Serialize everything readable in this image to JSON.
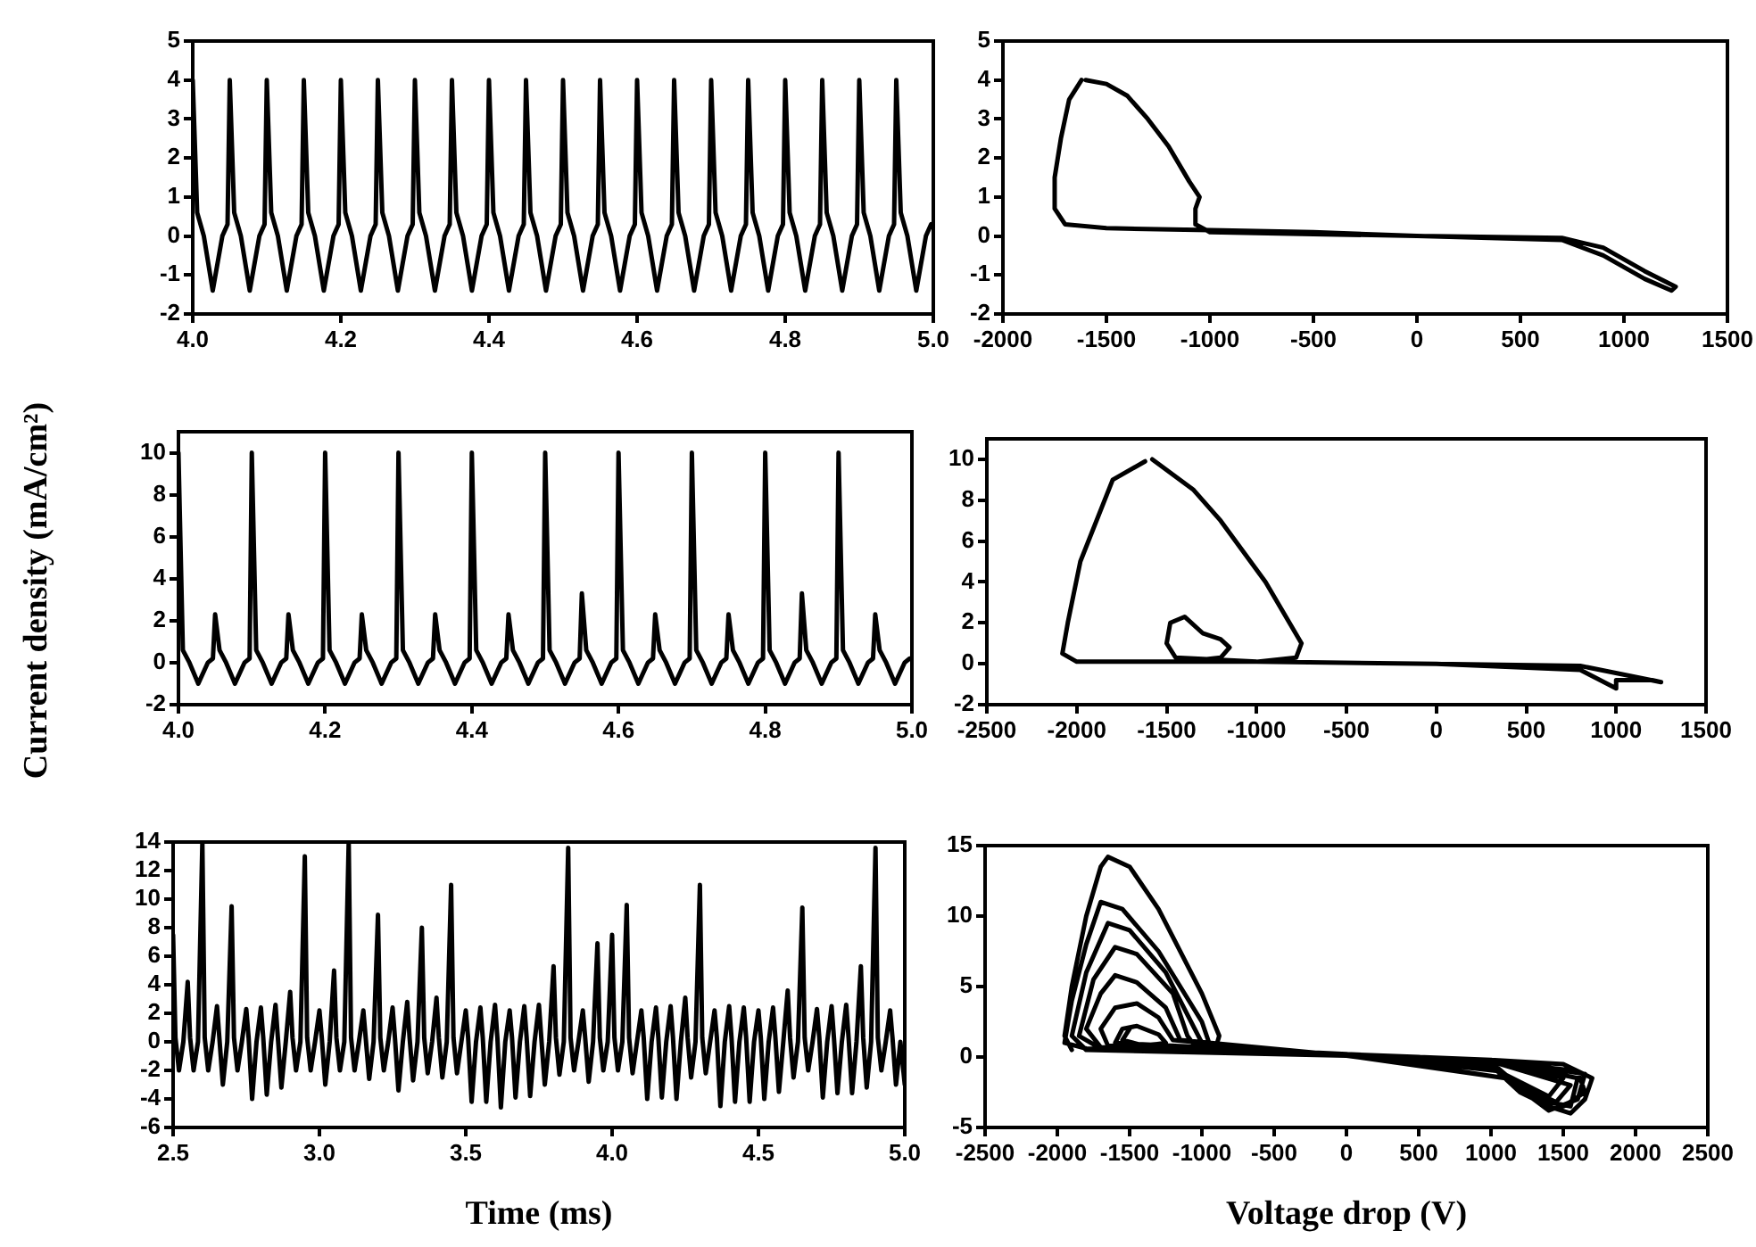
{
  "chart_data": [
    {
      "type": "line",
      "xlim": [
        4,
        5
      ],
      "xticks": [
        {
          "value": 4,
          "label": "4.0"
        },
        4.2,
        4.4,
        4.6,
        4.8,
        {
          "value": 5,
          "label": "5.0"
        }
      ],
      "ylim": [
        -2,
        5
      ],
      "yticks": [
        -2,
        -1,
        0,
        1,
        2,
        3,
        4,
        5
      ],
      "color": "#000000",
      "x": [
        4,
        4.006,
        4.015,
        4.027,
        4.04,
        4.047,
        4.05,
        4.056,
        4.065,
        4.077,
        4.09,
        4.097,
        4.1,
        4.106,
        4.115,
        4.127,
        4.14,
        4.147,
        4.15,
        4.156,
        4.165,
        4.177,
        4.19,
        4.197,
        4.2,
        4.206,
        4.215,
        4.227,
        4.24,
        4.247,
        4.25,
        4.256,
        4.265,
        4.277,
        4.29,
        4.297,
        4.3,
        4.306,
        4.315,
        4.327,
        4.34,
        4.347,
        4.35,
        4.356,
        4.365,
        4.377,
        4.39,
        4.397,
        4.4,
        4.406,
        4.415,
        4.427,
        4.44,
        4.447,
        4.45,
        4.456,
        4.465,
        4.477,
        4.49,
        4.497,
        4.5,
        4.506,
        4.515,
        4.527,
        4.54,
        4.547,
        4.55,
        4.556,
        4.565,
        4.577,
        4.59,
        4.597,
        4.6,
        4.606,
        4.615,
        4.627,
        4.64,
        4.647,
        4.65,
        4.656,
        4.665,
        4.677,
        4.69,
        4.697,
        4.7,
        4.706,
        4.715,
        4.727,
        4.74,
        4.747,
        4.75,
        4.756,
        4.765,
        4.777,
        4.79,
        4.797,
        4.8,
        4.806,
        4.815,
        4.827,
        4.84,
        4.847,
        4.85,
        4.856,
        4.865,
        4.877,
        4.89,
        4.897,
        4.9,
        4.906,
        4.915,
        4.927,
        4.94,
        4.947,
        4.95,
        4.956,
        4.965,
        4.977,
        4.99,
        4.997,
        5
      ],
      "values": [
        4,
        0.6,
        0,
        -1.4,
        0,
        0.3,
        4,
        0.6,
        0,
        -1.4,
        0,
        0.3,
        4,
        0.6,
        0,
        -1.4,
        0,
        0.3,
        4,
        0.6,
        0,
        -1.4,
        0,
        0.3,
        4,
        0.6,
        0,
        -1.4,
        0,
        0.3,
        4,
        0.6,
        0,
        -1.4,
        0,
        0.3,
        4,
        0.6,
        0,
        -1.4,
        0,
        0.3,
        4,
        0.6,
        0,
        -1.4,
        0,
        0.3,
        4,
        0.6,
        0,
        -1.4,
        0,
        0.3,
        4,
        0.6,
        0,
        -1.4,
        0,
        0.3,
        4,
        0.6,
        0,
        -1.4,
        0,
        0.3,
        4,
        0.6,
        0,
        -1.4,
        0,
        0.3,
        4,
        0.6,
        0,
        -1.4,
        0,
        0.3,
        4,
        0.6,
        0,
        -1.4,
        0,
        0.3,
        4,
        0.6,
        0,
        -1.4,
        0,
        0.3,
        4,
        0.6,
        0,
        -1.4,
        0,
        0.3,
        4,
        0.6,
        0,
        -1.4,
        0,
        0.3,
        4,
        0.6,
        0,
        -1.4,
        0,
        0.3,
        4,
        0.6,
        0,
        -1.4,
        0,
        0.3,
        4,
        0.6,
        0,
        -1.4,
        0,
        0.3,
        0.2
      ]
    },
    {
      "type": "line",
      "xlim": [
        -2000,
        1500
      ],
      "xticks": [
        -2000,
        -1500,
        -1000,
        -500,
        0,
        500,
        1000,
        1500
      ],
      "ylim": [
        -2,
        5
      ],
      "yticks": [
        -2,
        -1,
        0,
        1,
        2,
        3,
        4,
        5
      ],
      "color": "#000000",
      "x": [
        -1600,
        -1500,
        -1400,
        -1300,
        -1200,
        -1100,
        -1050,
        -1070,
        -1070,
        -1000,
        -500,
        0,
        700,
        900,
        1100,
        1250,
        1230,
        1100,
        900,
        700,
        0,
        -500,
        -1000,
        -1500,
        -1700,
        -1750,
        -1750,
        -1720,
        -1680,
        -1620
      ],
      "values": [
        4,
        3.9,
        3.6,
        3,
        2.3,
        1.4,
        1,
        0.7,
        0.3,
        0.1,
        0.05,
        0,
        -0.05,
        -0.3,
        -0.9,
        -1.3,
        -1.4,
        -1.1,
        -0.5,
        -0.1,
        0,
        0.1,
        0.15,
        0.2,
        0.3,
        0.7,
        1.5,
        2.5,
        3.5,
        4
      ]
    },
    {
      "type": "line",
      "ylabel": "Current density (mA/cm²)",
      "xlim": [
        4,
        5
      ],
      "xticks": [
        {
          "value": 4,
          "label": "4.0"
        },
        4.2,
        4.4,
        4.6,
        4.8,
        {
          "value": 5,
          "label": "5.0"
        }
      ],
      "ylim": [
        -2,
        11
      ],
      "yticks": [
        -2,
        0,
        2,
        4,
        6,
        8,
        10
      ],
      "color": "#000000",
      "x": [
        4,
        4.006,
        4.015,
        4.027,
        4.04,
        4.047,
        4.05,
        4.056,
        4.065,
        4.077,
        4.09,
        4.097,
        4.1,
        4.106,
        4.115,
        4.127,
        4.14,
        4.147,
        4.15,
        4.156,
        4.165,
        4.177,
        4.19,
        4.197,
        4.2,
        4.206,
        4.215,
        4.227,
        4.24,
        4.247,
        4.25,
        4.256,
        4.265,
        4.277,
        4.29,
        4.297,
        4.3,
        4.306,
        4.315,
        4.327,
        4.34,
        4.347,
        4.35,
        4.356,
        4.365,
        4.377,
        4.39,
        4.397,
        4.4,
        4.406,
        4.415,
        4.427,
        4.44,
        4.447,
        4.45,
        4.456,
        4.465,
        4.477,
        4.49,
        4.497,
        4.5,
        4.506,
        4.515,
        4.527,
        4.54,
        4.547,
        4.55,
        4.556,
        4.565,
        4.577,
        4.59,
        4.597,
        4.6,
        4.606,
        4.615,
        4.627,
        4.64,
        4.647,
        4.65,
        4.656,
        4.665,
        4.677,
        4.69,
        4.697,
        4.7,
        4.706,
        4.715,
        4.727,
        4.74,
        4.747,
        4.75,
        4.756,
        4.765,
        4.777,
        4.79,
        4.797,
        4.8,
        4.806,
        4.815,
        4.827,
        4.84,
        4.847,
        4.85,
        4.856,
        4.865,
        4.877,
        4.89,
        4.897,
        4.9,
        4.906,
        4.915,
        4.927,
        4.94,
        4.947,
        4.95,
        4.956,
        4.965,
        4.977,
        4.99,
        4.997,
        5
      ],
      "values": [
        10,
        0.6,
        0,
        -1,
        0,
        0.2,
        2.3,
        0.6,
        0,
        -1,
        0,
        0.2,
        10,
        0.6,
        0,
        -1,
        0,
        0.2,
        2.3,
        0.6,
        0,
        -1,
        0,
        0.2,
        10,
        0.6,
        0,
        -1,
        0,
        0.2,
        2.3,
        0.6,
        0,
        -1,
        0,
        0.2,
        10,
        0.6,
        0,
        -1,
        0,
        0.2,
        2.3,
        0.6,
        0,
        -1,
        0,
        0.2,
        10,
        0.6,
        0,
        -1,
        0,
        0.2,
        2.3,
        0.6,
        0,
        -1,
        0,
        0.2,
        10,
        0.6,
        0,
        -1,
        0,
        0.2,
        3.3,
        0.6,
        0,
        -1,
        0,
        0.2,
        10,
        0.6,
        0,
        -1,
        0,
        0.2,
        2.3,
        0.6,
        0,
        -1,
        0,
        0.2,
        10,
        0.6,
        0,
        -1,
        0,
        0.2,
        2.3,
        0.6,
        0,
        -1,
        0,
        0.2,
        10,
        0.6,
        0,
        -1,
        0,
        0.2,
        3.3,
        0.6,
        0,
        -1,
        0,
        0.2,
        10,
        0.6,
        0,
        -1,
        0,
        0.2,
        2.3,
        0.6,
        0,
        -1,
        0,
        0.2,
        0.2
      ]
    },
    {
      "type": "line",
      "xlim": [
        -2500,
        1500
      ],
      "xticks": [
        -2500,
        -2000,
        -1500,
        -1000,
        -500,
        0,
        500,
        1000,
        1500
      ],
      "ylim": [
        -2,
        11
      ],
      "yticks": [
        -2,
        0,
        2,
        4,
        6,
        8,
        10
      ],
      "color": "#000000",
      "x": [
        -1580,
        -1350,
        -1200,
        -950,
        -750,
        -780,
        -1000,
        -1300,
        -1200,
        -1150,
        -1200,
        -1300,
        -1400,
        -1480,
        -1500,
        -1450,
        -1000,
        0,
        800,
        1250,
        1200,
        1000,
        1000,
        800,
        0,
        -1000,
        -2000,
        -2080,
        -2050,
        -1980,
        -1800,
        -1620
      ],
      "values": [
        10,
        8.5,
        7,
        4,
        1,
        0.3,
        0.1,
        0.2,
        0.3,
        0.8,
        1.2,
        1.5,
        2.3,
        2,
        1,
        0.3,
        0.1,
        0,
        -0.1,
        -0.9,
        -0.8,
        -0.8,
        -1.2,
        -0.3,
        0,
        0.1,
        0.1,
        0.5,
        2,
        5,
        9,
        9.9
      ]
    },
    {
      "type": "line",
      "xlabel": "Time (ms)",
      "xlim": [
        2.5,
        5
      ],
      "xticks": [
        2.5,
        {
          "value": 3,
          "label": "3.0"
        },
        3.5,
        {
          "value": 4,
          "label": "4.0"
        },
        4.5,
        {
          "value": 5,
          "label": "5.0"
        }
      ],
      "ylim": [
        -6,
        14
      ],
      "yticks": [
        -6,
        -4,
        -2,
        0,
        2,
        4,
        6,
        8,
        10,
        12,
        14
      ],
      "color": "#000000",
      "x": [
        2.5,
        2.508,
        2.52,
        2.535,
        2.55,
        2.558,
        2.57,
        2.585,
        2.6,
        2.608,
        2.62,
        2.635,
        2.65,
        2.658,
        2.67,
        2.685,
        2.7,
        2.708,
        2.72,
        2.735,
        2.75,
        2.758,
        2.77,
        2.785,
        2.8,
        2.808,
        2.82,
        2.835,
        2.85,
        2.858,
        2.87,
        2.885,
        2.9,
        2.908,
        2.92,
        2.935,
        2.95,
        2.958,
        2.97,
        2.985,
        3,
        3.008,
        3.02,
        3.035,
        3.05,
        3.058,
        3.07,
        3.085,
        3.1,
        3.108,
        3.12,
        3.135,
        3.15,
        3.158,
        3.17,
        3.185,
        3.2,
        3.208,
        3.22,
        3.235,
        3.25,
        3.258,
        3.27,
        3.285,
        3.3,
        3.308,
        3.32,
        3.335,
        3.35,
        3.358,
        3.37,
        3.385,
        3.4,
        3.408,
        3.42,
        3.435,
        3.45,
        3.458,
        3.47,
        3.485,
        3.5,
        3.508,
        3.52,
        3.535,
        3.55,
        3.558,
        3.57,
        3.585,
        3.6,
        3.608,
        3.62,
        3.635,
        3.65,
        3.658,
        3.67,
        3.685,
        3.7,
        3.708,
        3.72,
        3.735,
        3.75,
        3.758,
        3.77,
        3.785,
        3.8,
        3.808,
        3.82,
        3.835,
        3.85,
        3.858,
        3.87,
        3.885,
        3.9,
        3.908,
        3.92,
        3.935,
        3.95,
        3.958,
        3.97,
        3.985,
        4,
        4.008,
        4.02,
        4.035,
        4.05,
        4.058,
        4.07,
        4.085,
        4.1,
        4.108,
        4.12,
        4.135,
        4.15,
        4.158,
        4.17,
        4.185,
        4.2,
        4.208,
        4.22,
        4.235,
        4.25,
        4.258,
        4.27,
        4.285,
        4.3,
        4.308,
        4.32,
        4.335,
        4.35,
        4.358,
        4.37,
        4.385,
        4.4,
        4.408,
        4.42,
        4.435,
        4.45,
        4.458,
        4.47,
        4.485,
        4.5,
        4.508,
        4.52,
        4.535,
        4.55,
        4.558,
        4.57,
        4.585,
        4.6,
        4.608,
        4.62,
        4.635,
        4.65,
        4.658,
        4.67,
        4.685,
        4.7,
        4.708,
        4.72,
        4.735,
        4.75,
        4.758,
        4.77,
        4.785,
        4.8,
        4.808,
        4.82,
        4.835,
        4.85,
        4.858,
        4.87,
        4.885,
        4.9,
        4.908,
        4.92,
        4.935,
        4.95,
        4.958,
        4.97,
        4.985,
        5
      ],
      "values": [
        7.5,
        0.3,
        -2,
        0,
        4.2,
        0.3,
        -2,
        0,
        14,
        0.3,
        -2,
        0,
        2.5,
        0.3,
        -3,
        0,
        9.5,
        0.3,
        -2,
        0,
        2.3,
        0.3,
        -4,
        0,
        2.4,
        0.3,
        -3.7,
        0,
        2.6,
        0.3,
        -3.2,
        0,
        3.5,
        0.3,
        -2,
        0,
        13,
        0.3,
        -2,
        0,
        2.2,
        0.3,
        -3,
        0,
        5,
        0.3,
        -2,
        0,
        14,
        0.3,
        -2,
        0,
        2.2,
        0.3,
        -2.6,
        0,
        8.9,
        0.3,
        -2,
        0,
        2.4,
        0.3,
        -3.4,
        0,
        2.8,
        0.3,
        -2.7,
        0,
        8,
        0.3,
        -2.2,
        0,
        3.1,
        0.3,
        -2.5,
        0,
        11,
        0.3,
        -2.2,
        0,
        2.2,
        0.3,
        -4.2,
        0,
        2.4,
        0.3,
        -4.2,
        0,
        2.6,
        0.3,
        -4.6,
        0,
        2.2,
        0.3,
        -3.9,
        0,
        2.5,
        0.3,
        -3.8,
        0,
        2.6,
        0.3,
        -3,
        0,
        5.3,
        0.3,
        -2.3,
        0,
        13.6,
        0.3,
        -2,
        0,
        2.2,
        0.3,
        -2.8,
        0,
        6.9,
        0.3,
        -2,
        0,
        7.5,
        0.3,
        -2,
        0,
        9.6,
        0.3,
        -2.2,
        0,
        2.2,
        0.3,
        -4,
        0,
        2.4,
        0.3,
        -3.9,
        0,
        2.5,
        0.3,
        -4,
        0,
        3.1,
        0.3,
        -2.5,
        0,
        11,
        0.3,
        -2.2,
        0,
        2.2,
        0.3,
        -4.5,
        0,
        2.5,
        0.3,
        -4.2,
        0,
        2.4,
        0.3,
        -4.2,
        0,
        2.2,
        0.3,
        -4,
        0,
        2.4,
        0.3,
        -3.5,
        0,
        3.6,
        0.3,
        -2.5,
        0,
        9.4,
        0.3,
        -2,
        0,
        2.3,
        0.3,
        -3.9,
        0,
        2.5,
        0.3,
        -3.6,
        0,
        2.6,
        0.3,
        -3.6,
        0,
        5.3,
        0.3,
        -3.2,
        0,
        13.6,
        0.3,
        -2,
        0,
        2.2,
        0.3,
        -3,
        0,
        -3
      ]
    },
    {
      "type": "line",
      "xlabel": "Voltage drop (V)",
      "xlim": [
        -2500,
        2500
      ],
      "xticks": [
        -2500,
        -2000,
        -1500,
        -1000,
        -500,
        0,
        500,
        1000,
        1500,
        2000,
        2500
      ],
      "ylim": [
        -5,
        15
      ],
      "yticks": [
        -5,
        0,
        5,
        10,
        15
      ],
      "color": "#000000",
      "x": [
        -1900,
        -1950,
        -1900,
        -1800,
        -1700,
        -1650,
        -1500,
        -1300,
        -1000,
        -880,
        -900,
        -500,
        0,
        500,
        1000,
        1500,
        1700,
        1650,
        1550,
        1400,
        1200,
        1000,
        500,
        0,
        -1000,
        -1800,
        -1950,
        -1900,
        -1800,
        -1700,
        -1550,
        -1300,
        -1000,
        -950,
        0,
        1000,
        1600,
        1650,
        1500,
        1250,
        1000,
        0,
        -1800,
        -1900,
        -1800,
        -1650,
        -1500,
        -1250,
        -1050,
        -1000,
        0,
        1000,
        1650,
        1600,
        1400,
        1100,
        0,
        -1700,
        -1850,
        -1750,
        -1600,
        -1450,
        -1200,
        -1100,
        -1050,
        0,
        1000,
        1600,
        1550,
        1300,
        1050,
        0,
        -1700,
        -1800,
        -1700,
        -1600,
        -1450,
        -1250,
        -1150,
        0,
        1000,
        1550,
        1450,
        1100,
        0,
        -1650,
        -1700,
        -1600,
        -1450,
        -1300,
        -1200,
        0,
        1000,
        1500,
        1400,
        1050,
        0,
        -1600,
        -1550,
        -1450,
        -1300,
        -1250,
        -1400,
        -1550,
        -1500
      ],
      "values": [
        0.5,
        1.5,
        5,
        10,
        13.5,
        14.2,
        13.5,
        10.5,
        4.5,
        1.5,
        0.8,
        0.4,
        0.2,
        0,
        -0.2,
        -0.5,
        -1.5,
        -3,
        -4,
        -3.5,
        -2.5,
        -0.6,
        0,
        0.2,
        0.5,
        0.6,
        1,
        4,
        8,
        11,
        10.5,
        7.5,
        2.5,
        1,
        0.1,
        -0.3,
        -1,
        -2.5,
        -3.5,
        -2.5,
        -0.4,
        0.1,
        0.5,
        1.5,
        6,
        9.5,
        9,
        6,
        2,
        1,
        0.1,
        -0.2,
        -1.2,
        -3,
        -3.8,
        -1.5,
        0.2,
        0.6,
        1.5,
        5.5,
        7.8,
        7.3,
        4.5,
        1.5,
        0.8,
        0.1,
        -0.2,
        -1.5,
        -3.5,
        -3,
        -0.8,
        0.1,
        0.7,
        2,
        4.5,
        5.8,
        5.3,
        3.5,
        1.2,
        0.1,
        -0.3,
        -2,
        -3.2,
        -1.5,
        0.1,
        0.8,
        2,
        3.5,
        3.8,
        2.8,
        1.2,
        0.1,
        -0.2,
        -1.5,
        -2.8,
        -1,
        0.2,
        1,
        2,
        2.2,
        1.6,
        1,
        0.8,
        1.2,
        2
      ]
    }
  ]
}
